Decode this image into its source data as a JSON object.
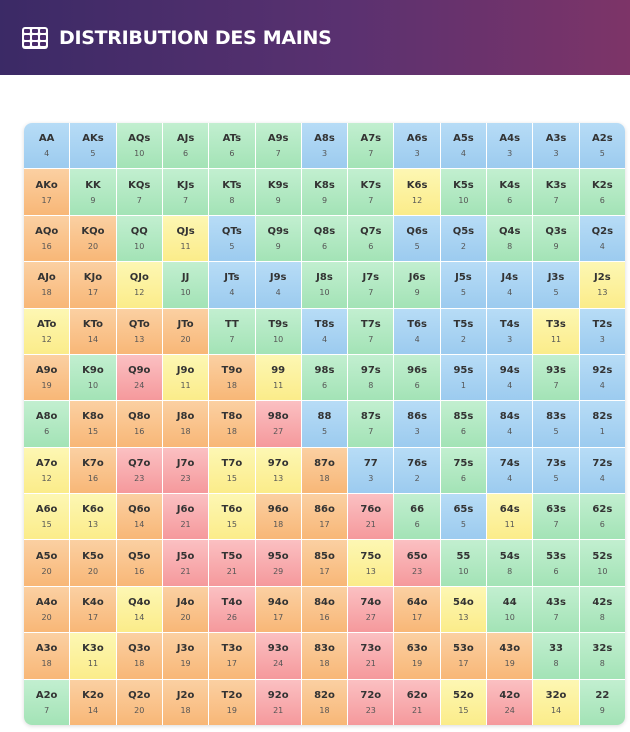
{
  "header": {
    "title": "DISTRIBUTION DES MAINS",
    "icon": "grid-icon"
  },
  "colors": {
    "blue": "#9ccbef",
    "green": "#a3e3b6",
    "yellow": "#fbec8a",
    "orange": "#f8b777",
    "red": "#f5999c"
  },
  "matrix": {
    "rows": [
      [
        [
          "AA",
          "4"
        ],
        [
          "AKs",
          "5"
        ],
        [
          "AQs",
          "10"
        ],
        [
          "AJs",
          "6"
        ],
        [
          "ATs",
          "6"
        ],
        [
          "A9s",
          "7"
        ],
        [
          "A8s",
          "3"
        ],
        [
          "A7s",
          "7"
        ],
        [
          "A6s",
          "3"
        ],
        [
          "A5s",
          "4"
        ],
        [
          "A4s",
          "3"
        ],
        [
          "A3s",
          "3"
        ],
        [
          "A2s",
          "5"
        ]
      ],
      [
        [
          "AKo",
          "17"
        ],
        [
          "KK",
          "9"
        ],
        [
          "KQs",
          "7"
        ],
        [
          "KJs",
          "7"
        ],
        [
          "KTs",
          "8"
        ],
        [
          "K9s",
          "9"
        ],
        [
          "K8s",
          "9"
        ],
        [
          "K7s",
          "7"
        ],
        [
          "K6s",
          "12"
        ],
        [
          "K5s",
          "10"
        ],
        [
          "K4s",
          "6"
        ],
        [
          "K3s",
          "7"
        ],
        [
          "K2s",
          "6"
        ]
      ],
      [
        [
          "AQo",
          "16"
        ],
        [
          "KQo",
          "20"
        ],
        [
          "QQ",
          "10"
        ],
        [
          "QJs",
          "11"
        ],
        [
          "QTs",
          "5"
        ],
        [
          "Q9s",
          "9"
        ],
        [
          "Q8s",
          "6"
        ],
        [
          "Q7s",
          "6"
        ],
        [
          "Q6s",
          "5"
        ],
        [
          "Q5s",
          "2"
        ],
        [
          "Q4s",
          "8"
        ],
        [
          "Q3s",
          "9"
        ],
        [
          "Q2s",
          "4"
        ]
      ],
      [
        [
          "AJo",
          "18"
        ],
        [
          "KJo",
          "17"
        ],
        [
          "QJo",
          "12"
        ],
        [
          "JJ",
          "10"
        ],
        [
          "JTs",
          "4"
        ],
        [
          "J9s",
          "4"
        ],
        [
          "J8s",
          "10"
        ],
        [
          "J7s",
          "7"
        ],
        [
          "J6s",
          "9"
        ],
        [
          "J5s",
          "5"
        ],
        [
          "J4s",
          "4"
        ],
        [
          "J3s",
          "5"
        ],
        [
          "J2s",
          "13"
        ]
      ],
      [
        [
          "ATo",
          "12"
        ],
        [
          "KTo",
          "14"
        ],
        [
          "QTo",
          "13"
        ],
        [
          "JTo",
          "20"
        ],
        [
          "TT",
          "7"
        ],
        [
          "T9s",
          "10"
        ],
        [
          "T8s",
          "4"
        ],
        [
          "T7s",
          "7"
        ],
        [
          "T6s",
          "4"
        ],
        [
          "T5s",
          "2"
        ],
        [
          "T4s",
          "3"
        ],
        [
          "T3s",
          "11"
        ],
        [
          "T2s",
          "3"
        ]
      ],
      [
        [
          "A9o",
          "19"
        ],
        [
          "K9o",
          "10"
        ],
        [
          "Q9o",
          "24"
        ],
        [
          "J9o",
          "11"
        ],
        [
          "T9o",
          "18"
        ],
        [
          "99",
          "11"
        ],
        [
          "98s",
          "6"
        ],
        [
          "97s",
          "8"
        ],
        [
          "96s",
          "6"
        ],
        [
          "95s",
          "1"
        ],
        [
          "94s",
          "4"
        ],
        [
          "93s",
          "7"
        ],
        [
          "92s",
          "4"
        ]
      ],
      [
        [
          "A8o",
          "6"
        ],
        [
          "K8o",
          "15"
        ],
        [
          "Q8o",
          "16"
        ],
        [
          "J8o",
          "18"
        ],
        [
          "T8o",
          "18"
        ],
        [
          "98o",
          "27"
        ],
        [
          "88",
          "5"
        ],
        [
          "87s",
          "7"
        ],
        [
          "86s",
          "3"
        ],
        [
          "85s",
          "6"
        ],
        [
          "84s",
          "4"
        ],
        [
          "83s",
          "5"
        ],
        [
          "82s",
          "1"
        ]
      ],
      [
        [
          "A7o",
          "12"
        ],
        [
          "K7o",
          "16"
        ],
        [
          "Q7o",
          "23"
        ],
        [
          "J7o",
          "23"
        ],
        [
          "T7o",
          "15"
        ],
        [
          "97o",
          "13"
        ],
        [
          "87o",
          "18"
        ],
        [
          "77",
          "3"
        ],
        [
          "76s",
          "2"
        ],
        [
          "75s",
          "6"
        ],
        [
          "74s",
          "4"
        ],
        [
          "73s",
          "5"
        ],
        [
          "72s",
          "4"
        ]
      ],
      [
        [
          "A6o",
          "15"
        ],
        [
          "K6o",
          "13"
        ],
        [
          "Q6o",
          "14"
        ],
        [
          "J6o",
          "21"
        ],
        [
          "T6o",
          "15"
        ],
        [
          "96o",
          "18"
        ],
        [
          "86o",
          "17"
        ],
        [
          "76o",
          "21"
        ],
        [
          "66",
          "6"
        ],
        [
          "65s",
          "5"
        ],
        [
          "64s",
          "11"
        ],
        [
          "63s",
          "7"
        ],
        [
          "62s",
          "6"
        ]
      ],
      [
        [
          "A5o",
          "20"
        ],
        [
          "K5o",
          "20"
        ],
        [
          "Q5o",
          "16"
        ],
        [
          "J5o",
          "21"
        ],
        [
          "T5o",
          "21"
        ],
        [
          "95o",
          "29"
        ],
        [
          "85o",
          "17"
        ],
        [
          "75o",
          "13"
        ],
        [
          "65o",
          "23"
        ],
        [
          "55",
          "10"
        ],
        [
          "54s",
          "8"
        ],
        [
          "53s",
          "6"
        ],
        [
          "52s",
          "10"
        ]
      ],
      [
        [
          "A4o",
          "20"
        ],
        [
          "K4o",
          "17"
        ],
        [
          "Q4o",
          "14"
        ],
        [
          "J4o",
          "20"
        ],
        [
          "T4o",
          "26"
        ],
        [
          "94o",
          "17"
        ],
        [
          "84o",
          "16"
        ],
        [
          "74o",
          "27"
        ],
        [
          "64o",
          "17"
        ],
        [
          "54o",
          "13"
        ],
        [
          "44",
          "10"
        ],
        [
          "43s",
          "7"
        ],
        [
          "42s",
          "8"
        ]
      ],
      [
        [
          "A3o",
          "18"
        ],
        [
          "K3o",
          "11"
        ],
        [
          "Q3o",
          "18"
        ],
        [
          "J3o",
          "19"
        ],
        [
          "T3o",
          "17"
        ],
        [
          "93o",
          "24"
        ],
        [
          "83o",
          "18"
        ],
        [
          "73o",
          "21"
        ],
        [
          "63o",
          "19"
        ],
        [
          "53o",
          "17"
        ],
        [
          "43o",
          "19"
        ],
        [
          "33",
          "8"
        ],
        [
          "32s",
          "8"
        ]
      ],
      [
        [
          "A2o",
          "7"
        ],
        [
          "K2o",
          "14"
        ],
        [
          "Q2o",
          "20"
        ],
        [
          "J2o",
          "18"
        ],
        [
          "T2o",
          "19"
        ],
        [
          "92o",
          "21"
        ],
        [
          "82o",
          "18"
        ],
        [
          "72o",
          "23"
        ],
        [
          "62o",
          "21"
        ],
        [
          "52o",
          "15"
        ],
        [
          "42o",
          "24"
        ],
        [
          "32o",
          "14"
        ],
        [
          "22",
          "9"
        ]
      ]
    ],
    "cell_colors": [
      [
        "blue",
        "blue",
        "green",
        "green",
        "green",
        "green",
        "blue",
        "green",
        "blue",
        "blue",
        "blue",
        "blue",
        "blue"
      ],
      [
        "orange",
        "green",
        "green",
        "green",
        "green",
        "green",
        "green",
        "green",
        "yellow",
        "green",
        "green",
        "green",
        "green"
      ],
      [
        "orange",
        "orange",
        "green",
        "yellow",
        "blue",
        "green",
        "green",
        "green",
        "blue",
        "blue",
        "green",
        "green",
        "blue"
      ],
      [
        "orange",
        "orange",
        "yellow",
        "green",
        "blue",
        "blue",
        "green",
        "green",
        "green",
        "blue",
        "blue",
        "blue",
        "yellow"
      ],
      [
        "yellow",
        "orange",
        "orange",
        "orange",
        "green",
        "green",
        "blue",
        "green",
        "blue",
        "blue",
        "blue",
        "yellow",
        "blue"
      ],
      [
        "orange",
        "green",
        "red",
        "yellow",
        "orange",
        "yellow",
        "green",
        "green",
        "green",
        "blue",
        "blue",
        "green",
        "blue"
      ],
      [
        "green",
        "orange",
        "orange",
        "orange",
        "orange",
        "red",
        "blue",
        "green",
        "blue",
        "green",
        "blue",
        "blue",
        "blue"
      ],
      [
        "yellow",
        "orange",
        "red",
        "red",
        "yellow",
        "yellow",
        "orange",
        "blue",
        "blue",
        "green",
        "blue",
        "blue",
        "blue"
      ],
      [
        "yellow",
        "yellow",
        "orange",
        "red",
        "yellow",
        "orange",
        "orange",
        "red",
        "green",
        "blue",
        "yellow",
        "green",
        "green"
      ],
      [
        "orange",
        "orange",
        "orange",
        "red",
        "red",
        "red",
        "orange",
        "yellow",
        "red",
        "green",
        "green",
        "green",
        "green"
      ],
      [
        "orange",
        "orange",
        "yellow",
        "orange",
        "red",
        "orange",
        "orange",
        "red",
        "orange",
        "yellow",
        "green",
        "green",
        "green"
      ],
      [
        "orange",
        "yellow",
        "orange",
        "orange",
        "orange",
        "red",
        "orange",
        "red",
        "orange",
        "orange",
        "orange",
        "green",
        "green"
      ],
      [
        "green",
        "orange",
        "orange",
        "orange",
        "orange",
        "red",
        "orange",
        "red",
        "red",
        "yellow",
        "red",
        "yellow",
        "green"
      ]
    ]
  }
}
